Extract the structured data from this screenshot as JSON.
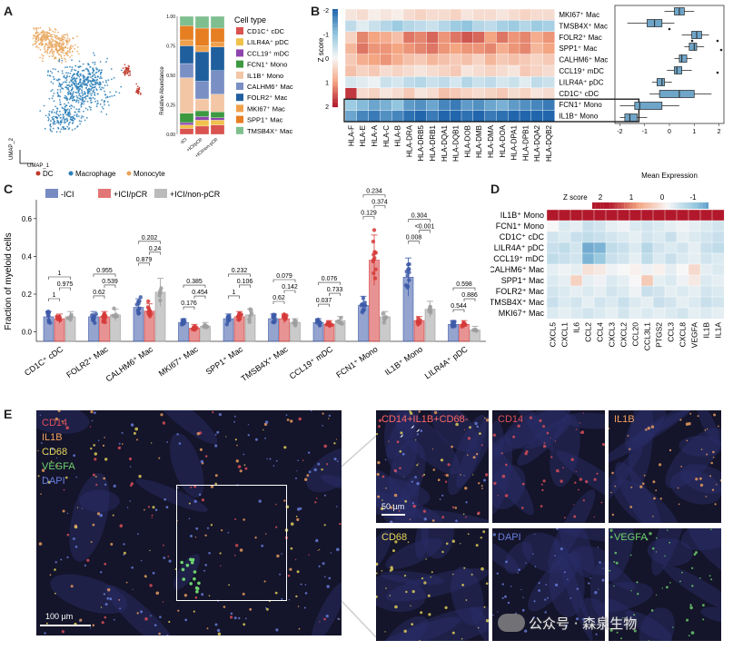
{
  "panels": {
    "a": "A",
    "b": "B",
    "c": "C",
    "d": "D",
    "e": "E"
  },
  "panelA": {
    "umap_axis_1": "UMAP_1",
    "umap_axis_2": "UMAP_2",
    "legend": [
      {
        "label": "DC",
        "color": "#c0392b"
      },
      {
        "label": "Macrophage",
        "color": "#2c7fb8"
      },
      {
        "label": "Monocyte",
        "color": "#e8a45a"
      }
    ],
    "bar_ylabel": "Relative Abundance",
    "bar_yticks": [
      "0.00",
      "0.25",
      "0.50",
      "0.75",
      "1.00"
    ],
    "bar_groups": [
      "-ICI",
      "+ICI/pCR",
      "+ICI/non-pCR"
    ],
    "celltype_title": "Cell type",
    "celltypes": [
      {
        "label": "CD1C⁺ cDC",
        "color": "#d9534f"
      },
      {
        "label": "LILR4A⁺ pDC",
        "color": "#f0c24b"
      },
      {
        "label": "CCL19⁺ mDC",
        "color": "#8e44ad"
      },
      {
        "label": "FCN1⁺ Mono",
        "color": "#3d9940"
      },
      {
        "label": "IL1B⁺ Mono",
        "color": "#f3c6a5"
      },
      {
        "label": "CALHM6⁺ Mac",
        "color": "#7a8fc4"
      },
      {
        "label": "FOLR2⁺ Mac",
        "color": "#1f5f9e"
      },
      {
        "label": "MKI67⁺ Mac",
        "color": "#f0a04b"
      },
      {
        "label": "SPP1⁺ Mac",
        "color": "#e67e22"
      },
      {
        "label": "TMSB4X⁺ Mac",
        "color": "#7fbf8f"
      }
    ],
    "composition": [
      [
        0.05,
        0.03,
        0.02,
        0.08,
        0.3,
        0.12,
        0.15,
        0.05,
        0.12,
        0.08
      ],
      [
        0.07,
        0.05,
        0.03,
        0.05,
        0.1,
        0.15,
        0.25,
        0.05,
        0.15,
        0.1
      ],
      [
        0.08,
        0.04,
        0.02,
        0.05,
        0.15,
        0.2,
        0.2,
        0.04,
        0.12,
        0.1
      ]
    ]
  },
  "panelB": {
    "zscore_label": "Z score",
    "zscore_ticks": [
      "-2",
      "-1",
      "0",
      "1",
      "2"
    ],
    "rows": [
      "MKI67⁺ Mac",
      "TMSB4X⁺ Mac",
      "FOLR2⁺ Mac",
      "SPP1⁺ Mac",
      "CALHM6⁺ Mac",
      "CCL19⁺ mDC",
      "LILR4A⁺ pDC",
      "CD1C⁺ cDC",
      "FCN1⁺ Mono",
      "IL1B⁺ Mono"
    ],
    "genes": [
      "HLA-F",
      "HLA-E",
      "HLA-A",
      "HLA-C",
      "HLA-B",
      "HLA-DRA",
      "HLA-DRB5",
      "HLA-DRB1",
      "HLA-DQA1",
      "HLA-DQB1",
      "HLA-DOB",
      "HLA-DMB",
      "HLA-DMA",
      "HLA-DOA",
      "HLA-DPA1",
      "HLA-DPB1",
      "HLA-DQA2",
      "HLA-DQB2"
    ],
    "values": [
      [
        0.2,
        0.3,
        0.1,
        0.2,
        0.1,
        0.3,
        0.4,
        0.3,
        0.3,
        0.4,
        0.2,
        0.3,
        0.3,
        0.2,
        0.3,
        0.4,
        0.3,
        0.3
      ],
      [
        -0.5,
        -0.2,
        -0.4,
        -0.6,
        -0.8,
        -0.6,
        -0.5,
        -0.4,
        -0.6,
        -0.8,
        -0.9,
        -0.6,
        -0.5,
        -0.7,
        -0.8,
        -0.6,
        -0.8,
        -0.7
      ],
      [
        0.4,
        1.1,
        0.9,
        0.8,
        0.6,
        1.2,
        1.1,
        1.3,
        1.0,
        1.2,
        1.4,
        1.3,
        0.9,
        1.2,
        1.0,
        1.1,
        0.8,
        1.0
      ],
      [
        0.7,
        1.2,
        1.0,
        1.0,
        0.9,
        1.0,
        1.1,
        1.2,
        1.0,
        0.9,
        1.0,
        1.0,
        1.1,
        0.8,
        1.0,
        1.1,
        0.7,
        0.9
      ],
      [
        0.5,
        0.8,
        0.9,
        1.0,
        0.8,
        0.6,
        0.5,
        0.7,
        0.6,
        0.5,
        0.6,
        0.4,
        0.7,
        0.5,
        0.6,
        0.5,
        0.4,
        0.5
      ],
      [
        0.6,
        0.4,
        0.5,
        0.3,
        0.4,
        0.3,
        0.2,
        0.3,
        0.4,
        0.5,
        0.2,
        0.3,
        0.4,
        0.3,
        0.2,
        0.5,
        0.4,
        0.3
      ],
      [
        -0.3,
        -0.2,
        -0.1,
        -0.4,
        -0.3,
        -0.5,
        -0.6,
        -0.4,
        -0.5,
        -0.3,
        -0.6,
        -0.4,
        -0.5,
        -0.3,
        -0.4,
        -0.2,
        -0.5,
        -0.4
      ],
      [
        1.6,
        0.3,
        0.4,
        0.2,
        0.3,
        0.5,
        0.2,
        0.3,
        0.6,
        0.5,
        0.4,
        0.3,
        0.4,
        0.5,
        0.3,
        0.4,
        0.2,
        0.3
      ],
      [
        -0.8,
        -1.0,
        -1.2,
        -1.1,
        -0.9,
        -1.3,
        -1.4,
        -1.2,
        -1.5,
        -1.6,
        -1.3,
        -1.4,
        -1.2,
        -1.1,
        -1.3,
        -1.4,
        -1.5,
        -1.6
      ],
      [
        -1.2,
        -1.5,
        -1.6,
        -1.4,
        -1.5,
        -1.7,
        -1.8,
        -1.6,
        -1.8,
        -1.9,
        -1.7,
        -1.8,
        -1.6,
        -1.7,
        -1.9,
        -1.8,
        -1.9,
        -1.8
      ]
    ],
    "mean_expression_label": "Mean Expression",
    "mean_axis_ticks": [
      "-2",
      "-1",
      "0",
      "1",
      "2"
    ],
    "box_stats": [
      {
        "q1": 0.2,
        "med": 0.4,
        "q3": 0.6,
        "lo": -0.2,
        "hi": 1.0
      },
      {
        "q1": -0.9,
        "med": -0.6,
        "q3": -0.3,
        "lo": -1.7,
        "hi": 0.2
      },
      {
        "q1": 0.9,
        "med": 1.1,
        "q3": 1.3,
        "lo": 0.5,
        "hi": 1.6
      },
      {
        "q1": 0.8,
        "med": 1.0,
        "q3": 1.1,
        "lo": 0.6,
        "hi": 1.4
      },
      {
        "q1": 0.4,
        "med": 0.5,
        "q3": 0.7,
        "lo": 0.2,
        "hi": 0.9
      },
      {
        "q1": 0.2,
        "med": 0.3,
        "q3": 0.5,
        "lo": -0.1,
        "hi": 0.9
      },
      {
        "q1": -0.5,
        "med": -0.3,
        "q3": -0.2,
        "lo": -0.7,
        "hi": 0.1
      },
      {
        "q1": -0.4,
        "med": 0.4,
        "q3": 1.0,
        "lo": -0.8,
        "hi": 1.7
      },
      {
        "q1": -1.4,
        "med": -1.2,
        "q3": -0.3,
        "lo": -2.0,
        "hi": 0.4
      },
      {
        "q1": -1.8,
        "med": -1.6,
        "q3": -1.3,
        "lo": -2.0,
        "hi": -0.9
      }
    ]
  },
  "panelC": {
    "ylabel": "Fraction of myeloid cells",
    "yticks": [
      "0.0",
      "0.2",
      "0.4",
      "0.6"
    ],
    "legend": [
      {
        "label": "-ICI",
        "color": "#3d5aa8"
      },
      {
        "label": "+ICI/pCR",
        "color": "#d63a3a"
      },
      {
        "label": "+ICI/non-pCR",
        "color": "#9e9e9e"
      }
    ],
    "categories": [
      "CD1C⁺ cDC",
      "FOLR2⁺ Mac",
      "CALHM6⁺ Mac",
      "MKI67⁺ Mac",
      "SPP1⁺ Mac",
      "TMSB4X⁺ Mac",
      "CCL19⁺ mDC",
      "FCN1⁺ Mono",
      "IL1B⁺ Mono",
      "LILR4A⁺ pDC"
    ],
    "means": [
      [
        0.08,
        0.07,
        0.08
      ],
      [
        0.08,
        0.08,
        0.09
      ],
      [
        0.13,
        0.11,
        0.21
      ],
      [
        0.05,
        0.02,
        0.03
      ],
      [
        0.07,
        0.08,
        0.09
      ],
      [
        0.07,
        0.07,
        0.05
      ],
      [
        0.05,
        0.04,
        0.06
      ],
      [
        0.14,
        0.38,
        0.08
      ],
      [
        0.29,
        0.06,
        0.12
      ],
      [
        0.04,
        0.04,
        0.01
      ]
    ],
    "pvalues": [
      [
        "1",
        "0.975",
        "1"
      ],
      [
        "0.955",
        "0.539",
        "0.62"
      ],
      [
        "0.202",
        "0.24",
        "0.879"
      ],
      [
        "0.385",
        "0.454",
        "0.176"
      ],
      [
        "0.232",
        "0.106",
        "1"
      ],
      [
        "0.079",
        "0.142",
        "0.62"
      ],
      [
        "0.076",
        "0.733",
        "0.037"
      ],
      [
        "0.234",
        "0.374",
        "0.129"
      ],
      [
        "0.304",
        "<0.001",
        "0.008"
      ],
      [
        "0.598",
        "0.886",
        "0.544"
      ]
    ]
  },
  "panelD": {
    "zscore_label": "Z score",
    "zscore_ticks": [
      "2",
      "1",
      "0",
      "-1"
    ],
    "rows": [
      "IL1B⁺ Mono",
      "FCN1⁺ Mono",
      "CD1C⁺ cDC",
      "LILR4A⁺ pDC",
      "CCL19⁺ mDC",
      "CALHM6⁺ Mac",
      "SPP1⁺ Mac",
      "FOLR2⁺ Mac",
      "TMSB4X⁺ Mac",
      "MKI67⁺ Mac"
    ],
    "genes": [
      "CXCL5",
      "CXCL1",
      "IL6",
      "CCL2",
      "CCL4",
      "CXCL3",
      "CXCL2",
      "CCL20",
      "CCL3L1",
      "PTGS2",
      "CCL3",
      "CXCL8",
      "VEGFA",
      "IL1B",
      "IL1A"
    ],
    "values": [
      [
        2.4,
        2.5,
        2.3,
        2.2,
        2.4,
        2.5,
        2.6,
        2.3,
        2.4,
        2.5,
        2.4,
        2.6,
        2.2,
        2.7,
        2.5
      ],
      [
        0.0,
        -0.3,
        -0.2,
        -0.5,
        -0.4,
        -0.2,
        -0.1,
        -0.3,
        -0.4,
        -0.3,
        -0.2,
        -0.1,
        -0.2,
        -0.3,
        -0.4
      ],
      [
        -0.4,
        -0.3,
        -0.5,
        -0.6,
        -0.5,
        -0.4,
        -0.3,
        -0.2,
        -0.4,
        -0.3,
        -0.5,
        -0.2,
        -0.3,
        -0.4,
        -0.5
      ],
      [
        -0.5,
        -0.6,
        -0.4,
        -1.4,
        -1.3,
        -0.6,
        -0.5,
        -0.3,
        -0.7,
        -0.4,
        -0.3,
        -0.4,
        -0.2,
        -0.5,
        -0.6
      ],
      [
        -0.6,
        -0.5,
        -0.4,
        -1.3,
        -1.0,
        -0.5,
        -0.4,
        -0.2,
        -0.6,
        -0.3,
        -0.5,
        -0.3,
        -0.2,
        -0.4,
        -0.3
      ],
      [
        -0.2,
        -0.1,
        -0.2,
        0.3,
        0.2,
        -0.1,
        0.0,
        0.1,
        -0.1,
        0.1,
        -0.2,
        0.0,
        0.4,
        -0.2,
        -0.3
      ],
      [
        -0.3,
        -0.2,
        0.5,
        -0.2,
        -0.1,
        -0.3,
        -0.2,
        0.0,
        0.6,
        -0.2,
        -0.3,
        -0.1,
        0.2,
        -0.3,
        -0.2
      ],
      [
        -0.4,
        -0.3,
        -0.2,
        -0.3,
        -0.2,
        -0.4,
        -0.3,
        -0.1,
        -0.5,
        -0.4,
        -0.2,
        -0.3,
        -0.2,
        -0.4,
        -0.3
      ],
      [
        -0.5,
        -0.3,
        -0.4,
        -0.2,
        -0.4,
        -0.3,
        -0.5,
        -0.3,
        -0.2,
        -0.5,
        -0.4,
        -0.2,
        -0.3,
        -0.5,
        -0.4
      ],
      [
        -0.3,
        -0.2,
        -0.3,
        -0.4,
        -0.3,
        -0.2,
        -0.4,
        -0.2,
        -0.3,
        -0.2,
        -0.3,
        -0.4,
        -0.2,
        -0.3,
        -0.2
      ]
    ]
  },
  "panelE": {
    "channels": [
      {
        "label": "CD14",
        "color": "#e0505a"
      },
      {
        "label": "IL1B",
        "color": "#f0a060"
      },
      {
        "label": "CD68",
        "color": "#e8d75a"
      },
      {
        "label": "VEGFA",
        "color": "#6fd36f"
      },
      {
        "label": "DAPI",
        "color": "#6a7fe0"
      }
    ],
    "merge_label": "CD14+IL1B+CD68-",
    "merge_color": "#ff6666",
    "scale_large": "100 µm",
    "scale_small": "50 µm",
    "watermark": "公众号 · 森泉生物"
  }
}
